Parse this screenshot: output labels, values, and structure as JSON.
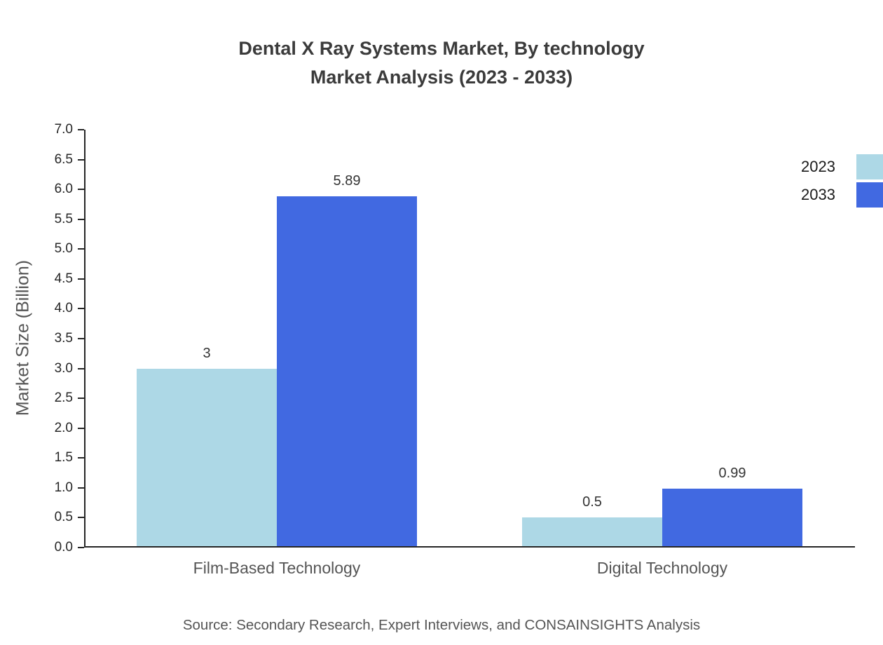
{
  "title": {
    "line1": "Dental X Ray Systems Market, By technology",
    "line2": "Market Analysis (2023 - 2033)"
  },
  "source": "Source: Secondary Research, Expert Interviews, and CONSAINSIGHTS Analysis",
  "chart_data": {
    "type": "bar",
    "title": "Dental X Ray Systems Market, By technology Market Analysis (2023 - 2033)",
    "categories": [
      "Film-Based Technology",
      "Digital Technology"
    ],
    "series": [
      {
        "name": "2023",
        "values": [
          3,
          0.5
        ],
        "labels": [
          "3",
          "0.5"
        ],
        "color": "#ADD8E6"
      },
      {
        "name": "2033",
        "values": [
          5.89,
          0.99
        ],
        "labels": [
          "5.89",
          "0.99"
        ],
        "color": "#4169E1"
      }
    ],
    "xlabel": "",
    "ylabel": "Market Size (Billion)",
    "ylim": [
      0,
      7
    ],
    "ytick_step": 0.5,
    "grid": false,
    "legend_position": "top-right"
  }
}
